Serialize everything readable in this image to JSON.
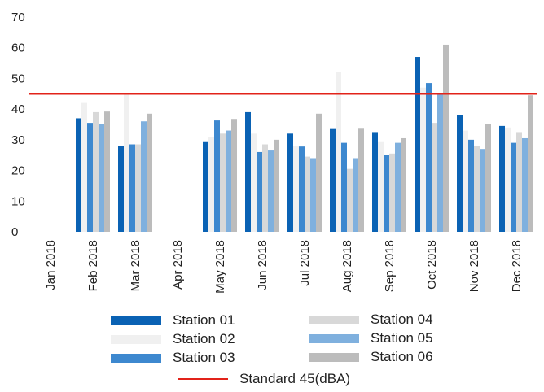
{
  "chart_data": {
    "type": "bar",
    "categories": [
      "Jan 2018",
      "Feb 2018",
      "Mar 2018",
      "Apr 2018",
      "May 2018",
      "Jun 2018",
      "Jul 2018",
      "Aug 2018",
      "Sep 2018",
      "Oct 2018",
      "Nov 2018",
      "Dec 2018"
    ],
    "ylim": [
      0,
      70
    ],
    "yticks": [
      "0",
      "10",
      "20",
      "30",
      "40",
      "50",
      "60",
      "70"
    ],
    "series": [
      {
        "name": "Station 01",
        "color": "#0a62b4",
        "values": [
          null,
          37,
          28,
          null,
          29.5,
          39,
          32,
          33.5,
          32.5,
          57,
          38,
          34.5
        ]
      },
      {
        "name": "Station 02",
        "color": "#f0f0f0",
        "values": [
          null,
          42,
          45,
          null,
          31,
          32,
          28,
          52,
          29.5,
          47,
          33,
          34
        ]
      },
      {
        "name": "Station 03",
        "color": "#3d88cf",
        "values": [
          null,
          35.5,
          28.5,
          null,
          36.3,
          26,
          27.8,
          29,
          25,
          48.5,
          30,
          29
        ]
      },
      {
        "name": "Station 04",
        "color": "#d8d8d8",
        "values": [
          null,
          39,
          28.5,
          null,
          32,
          28.5,
          24.5,
          20.5,
          25.5,
          35.5,
          28,
          32.5
        ]
      },
      {
        "name": "Station 05",
        "color": "#7fb0de",
        "values": [
          null,
          35,
          36,
          null,
          33,
          26.5,
          24,
          24,
          29,
          45,
          27,
          30.5
        ]
      },
      {
        "name": "Station 06",
        "color": "#bcbcbc",
        "values": [
          null,
          39.2,
          38.5,
          null,
          36.8,
          30,
          38.5,
          33.6,
          30.5,
          61,
          35,
          44.5
        ]
      }
    ],
    "reference_line": {
      "label": "Standard  45(dBA)",
      "value": 45,
      "color": "#e2231a"
    },
    "grid": false,
    "legend_position": "bottom"
  }
}
